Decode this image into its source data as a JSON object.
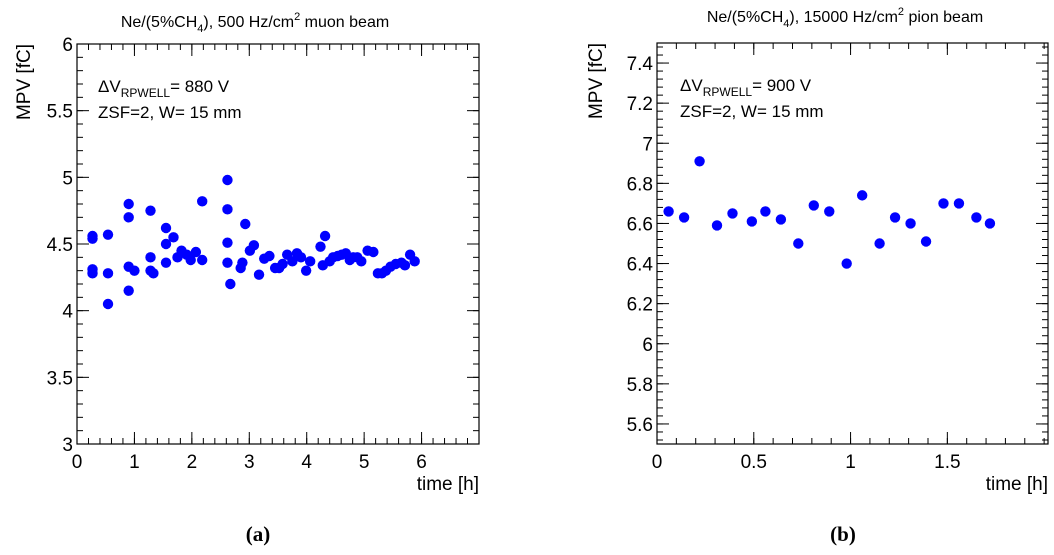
{
  "chart_data": [
    {
      "type": "scatter",
      "title": {
        "pre": "Ne/(5%CH",
        "sub": "4",
        "mid": "), 500 Hz/cm",
        "sup": "2",
        "post": " muon beam"
      },
      "xlabel": "time [h]",
      "ylabel": "MPV [fC]",
      "xlim": [
        0,
        7
      ],
      "ylim": [
        3,
        6
      ],
      "xticks": [
        0,
        1,
        2,
        3,
        4,
        5,
        6
      ],
      "xtick_labels": [
        "0",
        "1",
        "2",
        "3",
        "4",
        "5",
        "6"
      ],
      "yticks": [
        3,
        3.5,
        4,
        4.5,
        5,
        5.5,
        6
      ],
      "ytick_labels": [
        "3",
        "3.5",
        "4",
        "4.5",
        "5",
        "5.5",
        "6"
      ],
      "annotation": {
        "line1_pre": "ΔV",
        "line1_sub": "RPWELL",
        "line1_post": "= 880 V",
        "line2": "ZSF=2, W= 15 mm"
      },
      "marker_color": "#0000ff",
      "grid": false,
      "caption": "(a)",
      "points": [
        [
          0.27,
          4.56
        ],
        [
          0.27,
          4.54
        ],
        [
          0.27,
          4.31
        ],
        [
          0.27,
          4.28
        ],
        [
          0.54,
          4.57
        ],
        [
          0.54,
          4.28
        ],
        [
          0.54,
          4.05
        ],
        [
          0.9,
          4.8
        ],
        [
          0.9,
          4.7
        ],
        [
          0.9,
          4.33
        ],
        [
          0.9,
          4.15
        ],
        [
          1.0,
          4.3
        ],
        [
          1.28,
          4.75
        ],
        [
          1.28,
          4.4
        ],
        [
          1.28,
          4.3
        ],
        [
          1.33,
          4.28
        ],
        [
          1.55,
          4.62
        ],
        [
          1.55,
          4.5
        ],
        [
          1.55,
          4.36
        ],
        [
          1.68,
          4.55
        ],
        [
          1.75,
          4.4
        ],
        [
          1.82,
          4.45
        ],
        [
          1.91,
          4.42
        ],
        [
          1.98,
          4.38
        ],
        [
          2.07,
          4.44
        ],
        [
          2.18,
          4.82
        ],
        [
          2.18,
          4.38
        ],
        [
          2.62,
          4.98
        ],
        [
          2.62,
          4.76
        ],
        [
          2.62,
          4.51
        ],
        [
          2.62,
          4.36
        ],
        [
          2.67,
          4.2
        ],
        [
          2.85,
          4.32
        ],
        [
          2.88,
          4.36
        ],
        [
          2.93,
          4.65
        ],
        [
          3.01,
          4.45
        ],
        [
          3.08,
          4.49
        ],
        [
          3.17,
          4.27
        ],
        [
          3.26,
          4.39
        ],
        [
          3.35,
          4.41
        ],
        [
          3.45,
          4.32
        ],
        [
          3.52,
          4.32
        ],
        [
          3.58,
          4.35
        ],
        [
          3.66,
          4.42
        ],
        [
          3.75,
          4.37
        ],
        [
          3.83,
          4.43
        ],
        [
          3.9,
          4.4
        ],
        [
          3.99,
          4.3
        ],
        [
          4.06,
          4.37
        ],
        [
          4.24,
          4.48
        ],
        [
          4.28,
          4.34
        ],
        [
          4.32,
          4.56
        ],
        [
          4.4,
          4.37
        ],
        [
          4.46,
          4.4
        ],
        [
          4.54,
          4.41
        ],
        [
          4.61,
          4.42
        ],
        [
          4.68,
          4.43
        ],
        [
          4.75,
          4.38
        ],
        [
          4.81,
          4.4
        ],
        [
          4.88,
          4.4
        ],
        [
          4.95,
          4.37
        ],
        [
          5.06,
          4.45
        ],
        [
          5.16,
          4.44
        ],
        [
          5.24,
          4.28
        ],
        [
          5.31,
          4.28
        ],
        [
          5.38,
          4.3
        ],
        [
          5.46,
          4.33
        ],
        [
          5.55,
          4.35
        ],
        [
          5.65,
          4.36
        ],
        [
          5.71,
          4.34
        ],
        [
          5.8,
          4.42
        ],
        [
          5.88,
          4.37
        ]
      ]
    },
    {
      "type": "scatter",
      "title": {
        "pre": "Ne/(5%CH",
        "sub": "4",
        "mid": "), 15000 Hz/cm",
        "sup": "2",
        "post": " pion beam"
      },
      "xlabel": "time [h]",
      "ylabel": "MPV [fC]",
      "xlim": [
        0,
        2.02
      ],
      "ylim": [
        5.5,
        7.5
      ],
      "xticks": [
        0,
        0.5,
        1,
        1.5
      ],
      "xtick_labels": [
        "0",
        "0.5",
        "1",
        "1.5"
      ],
      "yticks": [
        5.6,
        5.8,
        6,
        6.2,
        6.4,
        6.6,
        6.8,
        7,
        7.2,
        7.4
      ],
      "ytick_labels": [
        "5.6",
        "5.8",
        "6",
        "6.2",
        "6.4",
        "6.6",
        "6.8",
        "7",
        "7.2",
        "7.4"
      ],
      "annotation": {
        "line1_pre": "ΔV",
        "line1_sub": "RPWELL",
        "line1_post": "= 900 V",
        "line2": "ZSF=2, W= 15 mm"
      },
      "marker_color": "#0000ff",
      "grid": false,
      "caption": "(b)",
      "points": [
        [
          0.06,
          6.66
        ],
        [
          0.14,
          6.63
        ],
        [
          0.22,
          6.91
        ],
        [
          0.31,
          6.59
        ],
        [
          0.39,
          6.65
        ],
        [
          0.49,
          6.61
        ],
        [
          0.56,
          6.66
        ],
        [
          0.64,
          6.62
        ],
        [
          0.73,
          6.5
        ],
        [
          0.81,
          6.69
        ],
        [
          0.89,
          6.66
        ],
        [
          0.98,
          6.4
        ],
        [
          1.06,
          6.74
        ],
        [
          1.15,
          6.5
        ],
        [
          1.23,
          6.63
        ],
        [
          1.31,
          6.6
        ],
        [
          1.39,
          6.51
        ],
        [
          1.48,
          6.7
        ],
        [
          1.56,
          6.7
        ],
        [
          1.65,
          6.63
        ],
        [
          1.72,
          6.6
        ]
      ]
    }
  ]
}
